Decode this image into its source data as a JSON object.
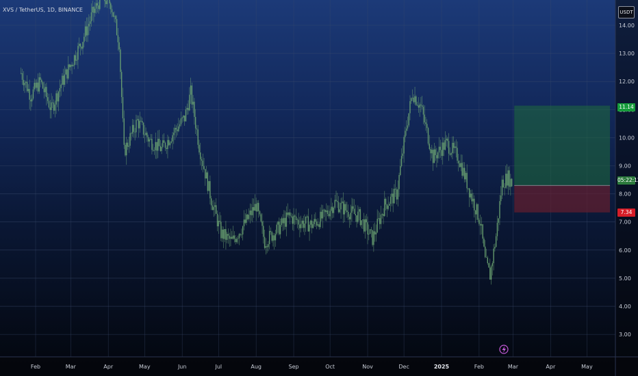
{
  "header": {
    "symbol": "XVS / TetherUS, 1D, BINANCE",
    "currency": "USDT"
  },
  "price_tags": {
    "target": "11.14",
    "current": "05:22:12",
    "stop": "7.34"
  },
  "colors": {
    "candle": "#6fa873",
    "grid": "#3a4a6b",
    "target_zone": "#1f6b3c",
    "stop_zone": "#6b1f2c",
    "event_marker": "#c45ad8"
  },
  "event_marker_icon": "lightning-bolt-icon",
  "chart_data": {
    "type": "candlestick",
    "y_ticks": [
      "14.00",
      "13.00",
      "12.00",
      "11.00",
      "10.00",
      "9.00",
      "8.00",
      "7.00",
      "6.00",
      "5.00",
      "4.00",
      "3.00"
    ],
    "x_ticks": [
      "Feb",
      "Mar",
      "Apr",
      "May",
      "Jun",
      "Jul",
      "Aug",
      "Sep",
      "Oct",
      "Nov",
      "Dec",
      "2025",
      "Feb",
      "Mar",
      "Apr",
      "May"
    ],
    "ylim": [
      2.2,
      14.9
    ],
    "price_path": [
      {
        "date": "2024-01-20",
        "close": 12.3
      },
      {
        "date": "2024-01-28",
        "close": 11.5
      },
      {
        "date": "2024-02-05",
        "close": 12.0
      },
      {
        "date": "2024-02-14",
        "close": 11.0
      },
      {
        "date": "2024-02-22",
        "close": 11.9
      },
      {
        "date": "2024-03-01",
        "close": 12.6
      },
      {
        "date": "2024-03-10",
        "close": 13.4
      },
      {
        "date": "2024-03-18",
        "close": 14.3
      },
      {
        "date": "2024-03-26",
        "close": 15.0
      },
      {
        "date": "2024-04-03",
        "close": 14.8
      },
      {
        "date": "2024-04-10",
        "close": 13.4
      },
      {
        "date": "2024-04-14",
        "close": 9.5
      },
      {
        "date": "2024-04-25",
        "close": 10.6
      },
      {
        "date": "2024-05-05",
        "close": 9.9
      },
      {
        "date": "2024-05-15",
        "close": 9.6
      },
      {
        "date": "2024-05-25",
        "close": 10.2
      },
      {
        "date": "2024-06-03",
        "close": 10.7
      },
      {
        "date": "2024-06-08",
        "close": 11.6
      },
      {
        "date": "2024-06-15",
        "close": 9.7
      },
      {
        "date": "2024-06-25",
        "close": 7.8
      },
      {
        "date": "2024-07-03",
        "close": 6.6
      },
      {
        "date": "2024-07-12",
        "close": 6.3
      },
      {
        "date": "2024-07-22",
        "close": 6.9
      },
      {
        "date": "2024-08-01",
        "close": 7.6
      },
      {
        "date": "2024-08-08",
        "close": 6.3
      },
      {
        "date": "2024-08-18",
        "close": 6.7
      },
      {
        "date": "2024-08-28",
        "close": 7.2
      },
      {
        "date": "2024-09-06",
        "close": 7.0
      },
      {
        "date": "2024-09-16",
        "close": 6.9
      },
      {
        "date": "2024-09-26",
        "close": 7.2
      },
      {
        "date": "2024-10-05",
        "close": 7.7
      },
      {
        "date": "2024-10-15",
        "close": 7.4
      },
      {
        "date": "2024-10-25",
        "close": 7.2
      },
      {
        "date": "2024-11-05",
        "close": 6.4
      },
      {
        "date": "2024-11-15",
        "close": 7.6
      },
      {
        "date": "2024-11-25",
        "close": 8.0
      },
      {
        "date": "2024-12-03",
        "close": 10.4
      },
      {
        "date": "2024-12-08",
        "close": 11.6
      },
      {
        "date": "2024-12-15",
        "close": 11.1
      },
      {
        "date": "2024-12-25",
        "close": 9.3
      },
      {
        "date": "2025-01-05",
        "close": 9.8
      },
      {
        "date": "2025-01-15",
        "close": 9.3
      },
      {
        "date": "2025-01-25",
        "close": 8.0
      },
      {
        "date": "2025-02-02",
        "close": 7.0
      },
      {
        "date": "2025-02-06",
        "close": 5.6
      },
      {
        "date": "2025-02-10",
        "close": 5.1
      },
      {
        "date": "2025-02-15",
        "close": 6.5
      },
      {
        "date": "2025-02-20",
        "close": 8.4
      },
      {
        "date": "2025-02-25",
        "close": 8.6
      },
      {
        "date": "2025-03-01",
        "close": 8.3
      }
    ],
    "position": {
      "entry": 8.3,
      "target": 11.14,
      "stop": 7.34,
      "start_date": "2025-03-02",
      "end_date": "2025-05-20"
    }
  }
}
